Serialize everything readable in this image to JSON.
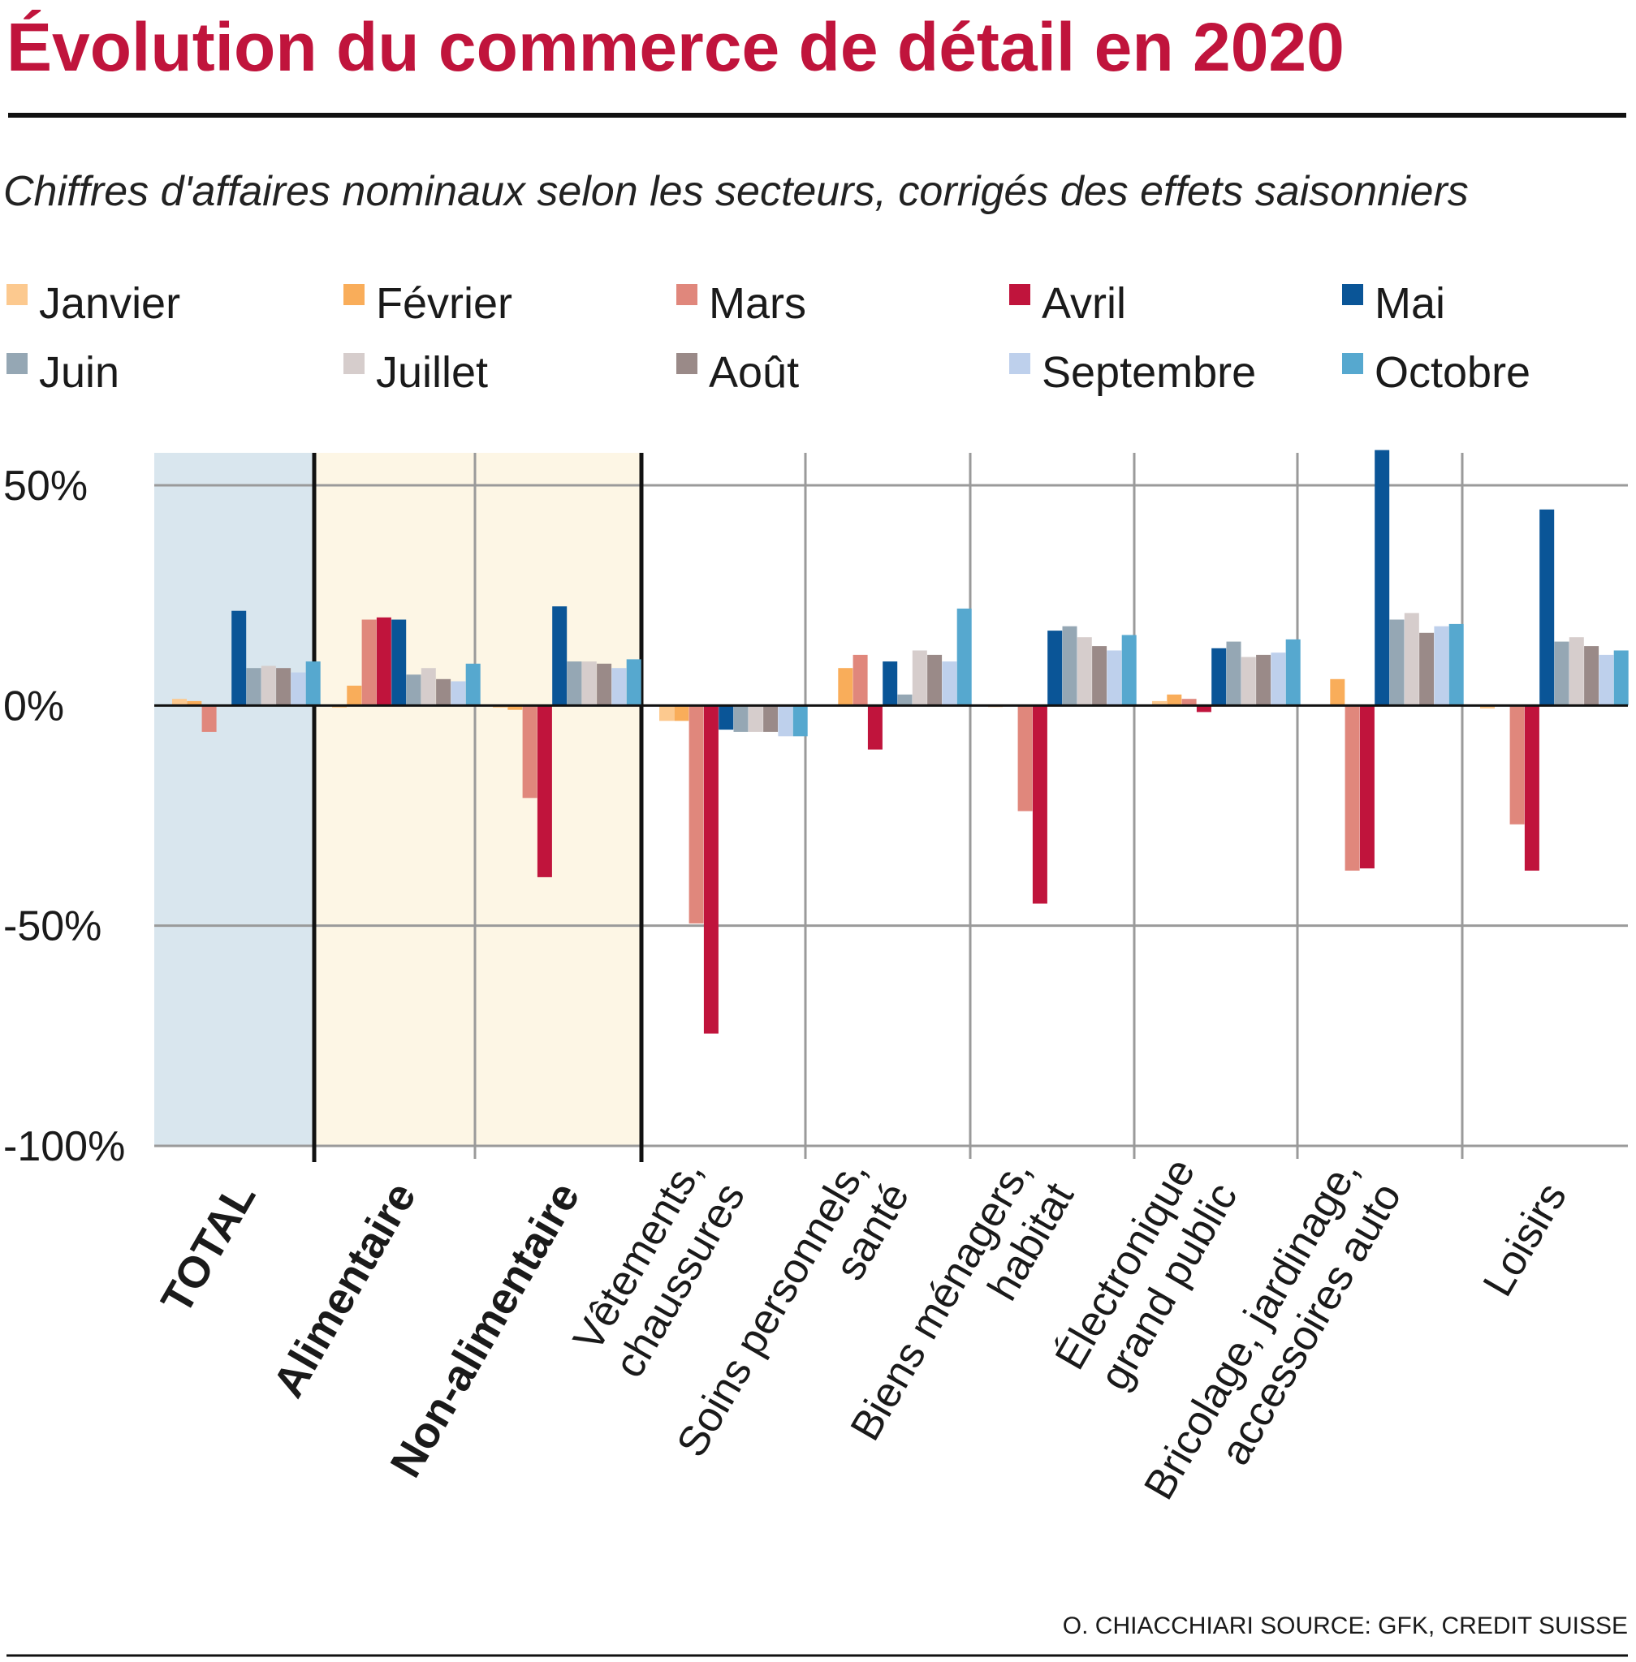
{
  "chart_data": {
    "type": "bar",
    "title": "Évolution du commerce de détail en 2020",
    "subtitle": "Chiffres d'affaires nominaux selon les secteurs, corrigés des effets saisonniers",
    "credit": "O. CHIACCHIARI   SOURCE: GFK, CREDIT SUISSE",
    "ylim": [
      -100,
      50
    ],
    "yticks": [
      {
        "value": 50,
        "label": "50%"
      },
      {
        "value": 0,
        "label": "0%"
      },
      {
        "value": -50,
        "label": "-50%"
      },
      {
        "value": -100,
        "label": "-100%"
      }
    ],
    "categories": [
      {
        "lines": [
          "TOTAL"
        ],
        "bold": true
      },
      {
        "lines": [
          "Alimentaire"
        ],
        "bold": true
      },
      {
        "lines": [
          "Non-alimentaire"
        ],
        "bold": true
      },
      {
        "lines": [
          "Vêtements,",
          "chaussures"
        ],
        "bold": false
      },
      {
        "lines": [
          "Soins personnels,",
          "santé"
        ],
        "bold": false
      },
      {
        "lines": [
          "Biens ménagers,",
          "habitat"
        ],
        "bold": false
      },
      {
        "lines": [
          "Électronique",
          "grand public"
        ],
        "bold": false
      },
      {
        "lines": [
          "Bricolage, jardinage,",
          "accessoires auto"
        ],
        "bold": false
      },
      {
        "lines": [
          "Loisirs"
        ],
        "bold": false
      }
    ],
    "series": [
      {
        "name": "Janvier",
        "color": "#fcc98f",
        "values": [
          1.5,
          -0.5,
          -0.5,
          -3.5,
          0,
          -0.3,
          1,
          0,
          -0.7
        ]
      },
      {
        "name": "Février",
        "color": "#f9ad5a",
        "values": [
          1,
          4.5,
          -1,
          -3.5,
          8.5,
          0,
          2.5,
          6,
          0
        ]
      },
      {
        "name": "Mars",
        "color": "#e0877c",
        "values": [
          -6,
          19.5,
          -21,
          -49.5,
          11.5,
          -24,
          1.5,
          -37.5,
          -27
        ]
      },
      {
        "name": "Avril",
        "color": "#c0143c",
        "values": [
          0,
          20,
          -39,
          -74.5,
          -10,
          -45,
          -1.5,
          -37,
          -37.5
        ]
      },
      {
        "name": "Mai",
        "color": "#0a5597",
        "values": [
          21.5,
          19.5,
          22.5,
          -5.5,
          10,
          17,
          13,
          58,
          44.5
        ]
      },
      {
        "name": "Juin",
        "color": "#95a7b4",
        "values": [
          8.5,
          7,
          10,
          -6,
          2.5,
          18,
          14.5,
          19.5,
          14.5
        ]
      },
      {
        "name": "Juillet",
        "color": "#d6cdcc",
        "values": [
          9,
          8.5,
          10,
          -6,
          12.5,
          15.5,
          11,
          21,
          15.5
        ]
      },
      {
        "name": "Août",
        "color": "#9a8a88",
        "values": [
          8.5,
          6,
          9.5,
          -6,
          11.5,
          13.5,
          11.5,
          16.5,
          13.5
        ]
      },
      {
        "name": "Septembre",
        "color": "#bed0ec",
        "values": [
          7.5,
          5.5,
          8.5,
          -7,
          10,
          12.5,
          12,
          18,
          11.5
        ]
      },
      {
        "name": "Octobre",
        "color": "#56a8cf",
        "values": [
          10,
          9.5,
          10.5,
          -7,
          22,
          16,
          15,
          18.5,
          12.5
        ]
      }
    ],
    "panels": [
      {
        "label": "total",
        "color": "#d9e6ee"
      },
      {
        "label": "food-split",
        "color": "#fdf6e5"
      }
    ],
    "colors": {
      "title": "#c0143c",
      "grid": "#9a9a9a",
      "axis": "#111111"
    }
  }
}
